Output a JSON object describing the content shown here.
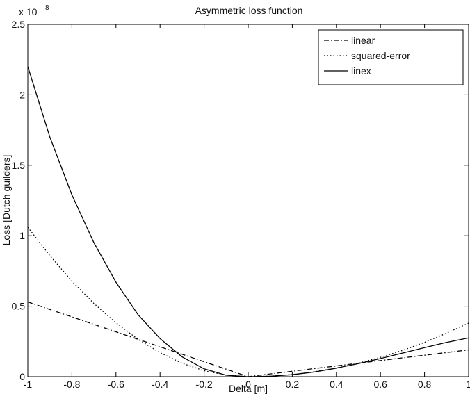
{
  "chart_data": {
    "type": "line",
    "title": "Asymmetric loss function",
    "xlabel": "Delta [m]",
    "ylabel": "Loss [Dutch guilders]",
    "y_exponent_label": "x 10",
    "y_exponent_power": "8",
    "xlim": [
      -1,
      1
    ],
    "ylim": [
      0,
      2.5
    ],
    "xticks": [
      -1,
      -0.8,
      -0.6,
      -0.4,
      -0.2,
      0,
      0.2,
      0.4,
      0.6,
      0.8,
      1
    ],
    "xtick_labels": [
      "-1",
      "-0.8",
      "-0.6",
      "-0.4",
      "-0.2",
      "0",
      "0.2",
      "0.4",
      "0.6",
      "0.8",
      "1"
    ],
    "yticks": [
      0,
      0.5,
      1,
      1.5,
      2,
      2.5
    ],
    "ytick_labels": [
      "0",
      "0.5",
      "1",
      "1.5",
      "2",
      "2.5"
    ],
    "grid": false,
    "legend_position": "top-right",
    "x": [
      -1,
      -0.9,
      -0.8,
      -0.7,
      -0.6,
      -0.5,
      -0.4,
      -0.3,
      -0.2,
      -0.1,
      0,
      0.1,
      0.2,
      0.3,
      0.4,
      0.5,
      0.6,
      0.7,
      0.8,
      0.9,
      1
    ],
    "series": [
      {
        "name": "linear",
        "style": "dashdot",
        "values": [
          0.53,
          0.477,
          0.424,
          0.371,
          0.318,
          0.265,
          0.212,
          0.159,
          0.106,
          0.053,
          0,
          0.019,
          0.038,
          0.057,
          0.076,
          0.095,
          0.114,
          0.133,
          0.152,
          0.171,
          0.19
        ]
      },
      {
        "name": "squared-error",
        "style": "dotted",
        "values": [
          1.06,
          0.859,
          0.678,
          0.519,
          0.382,
          0.265,
          0.17,
          0.095,
          0.042,
          0.011,
          0,
          0.004,
          0.015,
          0.034,
          0.061,
          0.095,
          0.137,
          0.186,
          0.243,
          0.308,
          0.38
        ]
      },
      {
        "name": "linex",
        "style": "solid",
        "values": [
          2.2,
          1.7,
          1.29,
          0.95,
          0.67,
          0.44,
          0.27,
          0.14,
          0.055,
          0.01,
          0,
          0.003,
          0.014,
          0.033,
          0.06,
          0.092,
          0.128,
          0.167,
          0.206,
          0.243,
          0.275
        ]
      }
    ]
  }
}
